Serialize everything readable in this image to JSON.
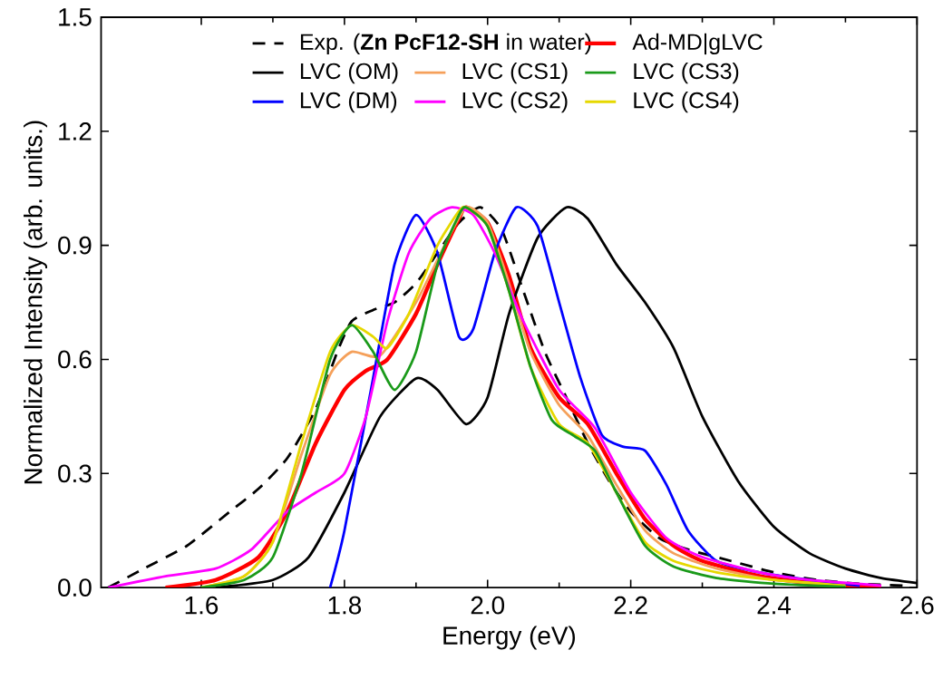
{
  "chart_data": {
    "type": "line",
    "xlabel": "Energy (eV)",
    "ylabel": "Normalized Intensity (arb. units.)",
    "xlim": [
      1.46,
      2.6
    ],
    "ylim": [
      0,
      1.5
    ],
    "xticks": [
      1.6,
      1.8,
      {
        "value": 2.0,
        "label": "2.0"
      },
      2.2,
      2.4,
      2.6
    ],
    "yticks": [
      {
        "value": 0,
        "label": "0.0"
      },
      0.3,
      0.6,
      0.9,
      1.2,
      1.5
    ],
    "legend": "top",
    "grid": false,
    "marker": "none",
    "series": [
      {
        "name": "Exp. (**Zn PcF12-SH** in water)",
        "color": "#000000",
        "line_style": "dashed",
        "x": [
          1.47,
          1.52,
          1.58,
          1.64,
          1.68,
          1.72,
          1.76,
          1.79,
          1.81,
          1.84,
          1.87,
          1.9,
          1.93,
          1.96,
          1.99,
          2.02,
          2.05,
          2.08,
          2.11,
          2.14,
          2.17,
          2.2,
          2.24,
          2.28,
          2.34,
          2.4,
          2.46,
          2.52,
          2.58
        ],
        "values": [
          0,
          0.05,
          0.11,
          0.2,
          0.26,
          0.34,
          0.47,
          0.62,
          0.7,
          0.73,
          0.75,
          0.8,
          0.88,
          0.96,
          1.0,
          0.94,
          0.78,
          0.62,
          0.5,
          0.38,
          0.28,
          0.2,
          0.13,
          0.1,
          0.07,
          0.04,
          0.02,
          0.01,
          0.005
        ]
      },
      {
        "name": "Ad-MD|gLVC",
        "color": "#ff0000",
        "line_style": "solid",
        "x": [
          1.55,
          1.62,
          1.68,
          1.72,
          1.76,
          1.8,
          1.83,
          1.86,
          1.9,
          1.93,
          1.96,
          1.97,
          2.0,
          2.03,
          2.06,
          2.1,
          2.14,
          2.18,
          2.22,
          2.26,
          2.3,
          2.38,
          2.46,
          2.55
        ],
        "values": [
          0,
          0.02,
          0.08,
          0.2,
          0.38,
          0.52,
          0.57,
          0.6,
          0.72,
          0.85,
          0.97,
          1.0,
          0.96,
          0.82,
          0.63,
          0.5,
          0.43,
          0.3,
          0.18,
          0.11,
          0.07,
          0.03,
          0.01,
          0.003
        ]
      },
      {
        "name": "LVC (OM)",
        "color": "#000000",
        "line_style": "solid",
        "x": [
          1.62,
          1.7,
          1.75,
          1.8,
          1.85,
          1.9,
          1.93,
          1.97,
          2.0,
          2.03,
          2.07,
          2.11,
          2.14,
          2.18,
          2.22,
          2.26,
          2.3,
          2.35,
          2.4,
          2.45,
          2.5,
          2.55,
          2.6
        ],
        "values": [
          0,
          0.02,
          0.08,
          0.25,
          0.45,
          0.55,
          0.52,
          0.43,
          0.5,
          0.72,
          0.92,
          1.0,
          0.97,
          0.85,
          0.75,
          0.63,
          0.45,
          0.28,
          0.16,
          0.09,
          0.05,
          0.025,
          0.012
        ]
      },
      {
        "name": "LVC (CS1)",
        "color": "#f5a05a",
        "line_style": "solid",
        "x": [
          1.6,
          1.66,
          1.7,
          1.74,
          1.78,
          1.81,
          1.85,
          1.9,
          1.94,
          1.97,
          2.0,
          2.03,
          2.06,
          2.1,
          2.14,
          2.18,
          2.22,
          2.26,
          2.32,
          2.4,
          2.5
        ],
        "values": [
          0,
          0.03,
          0.12,
          0.35,
          0.56,
          0.62,
          0.61,
          0.75,
          0.9,
          1.0,
          0.96,
          0.8,
          0.62,
          0.48,
          0.4,
          0.27,
          0.15,
          0.09,
          0.05,
          0.02,
          0.005
        ]
      },
      {
        "name": "LVC (CS3)",
        "color": "#1a9a1a",
        "line_style": "solid",
        "x": [
          1.6,
          1.66,
          1.7,
          1.74,
          1.78,
          1.81,
          1.84,
          1.87,
          1.9,
          1.93,
          1.96,
          1.97,
          2.0,
          2.03,
          2.06,
          2.09,
          2.12,
          2.15,
          2.18,
          2.22,
          2.26,
          2.32,
          2.4,
          2.5
        ],
        "values": [
          0,
          0.02,
          0.08,
          0.3,
          0.6,
          0.69,
          0.62,
          0.52,
          0.62,
          0.85,
          0.98,
          1.0,
          0.95,
          0.78,
          0.58,
          0.44,
          0.4,
          0.36,
          0.25,
          0.11,
          0.055,
          0.025,
          0.01,
          0.002
        ]
      },
      {
        "name": "LVC (DM)",
        "color": "#0000ff",
        "line_style": "solid",
        "x": [
          1.78,
          1.8,
          1.84,
          1.87,
          1.9,
          1.93,
          1.96,
          1.98,
          2.01,
          2.04,
          2.07,
          2.1,
          2.13,
          2.16,
          2.19,
          2.22,
          2.25,
          2.28,
          2.32,
          2.38,
          2.45,
          2.52
        ],
        "values": [
          0,
          0.15,
          0.55,
          0.85,
          0.98,
          0.88,
          0.66,
          0.68,
          0.88,
          1.0,
          0.95,
          0.75,
          0.55,
          0.4,
          0.37,
          0.36,
          0.27,
          0.15,
          0.07,
          0.04,
          0.02,
          0.005
        ]
      },
      {
        "name": "LVC (CS2)",
        "color": "#ff00ff",
        "line_style": "solid",
        "x": [
          1.47,
          1.55,
          1.62,
          1.67,
          1.72,
          1.76,
          1.8,
          1.83,
          1.86,
          1.89,
          1.92,
          1.95,
          1.98,
          2.01,
          2.05,
          2.1,
          2.15,
          2.2,
          2.25,
          2.3,
          2.38,
          2.45,
          2.55
        ],
        "values": [
          0,
          0.03,
          0.05,
          0.1,
          0.2,
          0.25,
          0.3,
          0.45,
          0.7,
          0.88,
          0.97,
          1.0,
          0.98,
          0.88,
          0.7,
          0.52,
          0.42,
          0.25,
          0.13,
          0.08,
          0.04,
          0.02,
          0.005
        ]
      },
      {
        "name": "LVC (CS4)",
        "color": "#e6d800",
        "line_style": "solid",
        "x": [
          1.6,
          1.66,
          1.7,
          1.74,
          1.78,
          1.81,
          1.84,
          1.86,
          1.89,
          1.93,
          1.96,
          1.97,
          2.0,
          2.03,
          2.06,
          2.1,
          2.14,
          2.18,
          2.22,
          2.26,
          2.32,
          2.4,
          2.5
        ],
        "values": [
          0,
          0.03,
          0.12,
          0.38,
          0.62,
          0.69,
          0.66,
          0.63,
          0.72,
          0.9,
          0.99,
          1.0,
          0.95,
          0.78,
          0.58,
          0.43,
          0.38,
          0.25,
          0.12,
          0.07,
          0.04,
          0.02,
          0.005
        ]
      }
    ]
  }
}
